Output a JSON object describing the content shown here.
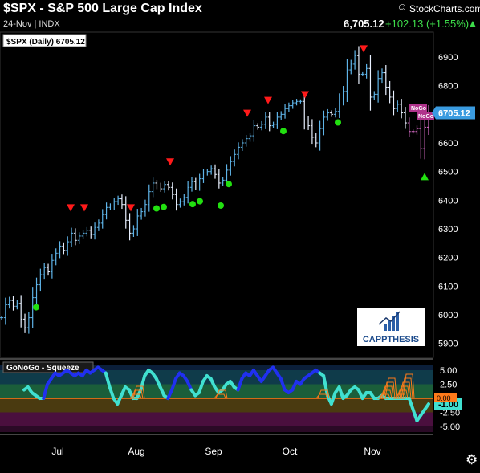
{
  "header": {
    "title": "$SPX - S&P 500 Large Cap Index",
    "subtitle": "24-Nov | INDX",
    "price": "6,705.12",
    "change": "+102.13 (+1.55%)",
    "up_marker": "▲",
    "brand_copy": "©",
    "brand_name": "StockCharts.com"
  },
  "logo": {
    "name": "CAPPTHESIS"
  },
  "icons": {
    "settings": "gear-icon",
    "logo": "capp-thesis-logo-icon"
  },
  "colors": {
    "bar_up": "#5fb4e8",
    "bar_down": "#e8f0ff",
    "pink": "#d86cc8",
    "red_marker": "#ff1a1a",
    "green_marker": "#22e010",
    "price_tag": "#3a9be0",
    "osc_cyan": "#40e0d0",
    "osc_blue": "#2030f0",
    "osc_orange": "#ff7a1a"
  },
  "chart_data": [
    {
      "type": "bar",
      "title": "$SPX (Daily) 6705.12",
      "last_price_label": "6705.12",
      "y_ticks": [
        "6900",
        "6800",
        "6700",
        "6600",
        "6500",
        "6400",
        "6300",
        "6200",
        "6100",
        "6000",
        "5900"
      ],
      "ylim": [
        5870,
        6990
      ],
      "x_ticks": [
        "Jul",
        "Aug",
        "Sep",
        "Oct",
        "Nov"
      ],
      "nogo_labels": [
        "NoGo",
        "NoGo"
      ],
      "closes": [
        5990,
        6035,
        6050,
        6030,
        6040,
        5985,
        5955,
        5990,
        6060,
        6105,
        6140,
        6165,
        6150,
        6190,
        6215,
        6240,
        6225,
        6255,
        6285,
        6260,
        6275,
        6285,
        6295,
        6280,
        6305,
        6320,
        6350,
        6375,
        6380,
        6395,
        6405,
        6385,
        6330,
        6285,
        6300,
        6345,
        6360,
        6385,
        6430,
        6460,
        6450,
        6440,
        6455,
        6445,
        6420,
        6385,
        6395,
        6410,
        6445,
        6465,
        6450,
        6475,
        6495,
        6500,
        6510,
        6490,
        6460,
        6470,
        6505,
        6535,
        6560,
        6585,
        6600,
        6615,
        6625,
        6660,
        6655,
        6665,
        6690,
        6660,
        6665,
        6690,
        6700,
        6720,
        6730,
        6740,
        6745,
        6745,
        6680,
        6660,
        6620,
        6600,
        6650,
        6690,
        6705,
        6700,
        6710,
        6750,
        6780,
        6855,
        6875,
        6905,
        6840,
        6840,
        6860,
        6760,
        6770,
        6825,
        6845,
        6795,
        6760,
        6720,
        6735,
        6705,
        6670,
        6640,
        6640,
        6650,
        6580,
        6655,
        6705
      ],
      "sell_markers_at_x": [
        88,
        105,
        163,
        212,
        308,
        334,
        380,
        453
      ],
      "buy_markers_at_x": [
        45,
        195,
        204,
        240,
        249,
        275,
        285,
        353,
        421,
        529
      ]
    },
    {
      "type": "line",
      "title": "GoNoGo - Squeeze",
      "y_ticks": [
        "5.00",
        "2.50",
        "-2.50",
        "-5.00"
      ],
      "ylim": [
        -6,
        6
      ],
      "current_value_label": "-1.00",
      "zero_value_label": "0.00",
      "values": [
        1.5,
        2.0,
        1.0,
        0.5,
        0.0,
        0.0,
        2.5,
        3.5,
        4.5,
        4.0,
        4.5,
        5.0,
        4.5,
        4.0,
        4.5,
        4.0,
        5.0,
        4.5,
        5.0,
        5.5,
        5.0,
        4.5,
        2.0,
        0.0,
        -1.0,
        0.5,
        2.0,
        1.5,
        0.0,
        0.0,
        1.5,
        4.0,
        5.0,
        4.5,
        3.5,
        2.0,
        0.5,
        0.0,
        1.5,
        3.5,
        4.5,
        4.0,
        3.0,
        1.5,
        0.5,
        1.0,
        3.0,
        4.0,
        3.5,
        2.0,
        1.0,
        1.5,
        2.5,
        3.0,
        2.0,
        1.5,
        3.5,
        4.5,
        4.0,
        5.0,
        4.0,
        3.0,
        4.0,
        5.0,
        5.5,
        4.5,
        3.5,
        1.5,
        1.0,
        1.5,
        3.0,
        2.5,
        3.5,
        4.0,
        4.5,
        5.0,
        4.5,
        4.0,
        0.5,
        -1.0,
        1.0,
        2.0,
        0.0,
        0.5,
        1.5,
        2.0,
        1.5,
        0.0,
        1.0,
        1.0,
        0.0,
        0.0,
        0.5,
        0.0,
        0.0,
        0.0,
        0.0,
        0.0,
        0.0,
        0.0,
        -2.0,
        -4.0,
        -3.0,
        -2.0,
        -1.0
      ],
      "blue_index_ranges": [
        [
          6,
          21
        ],
        [
          38,
          43
        ],
        [
          56,
          76
        ]
      ]
    }
  ]
}
